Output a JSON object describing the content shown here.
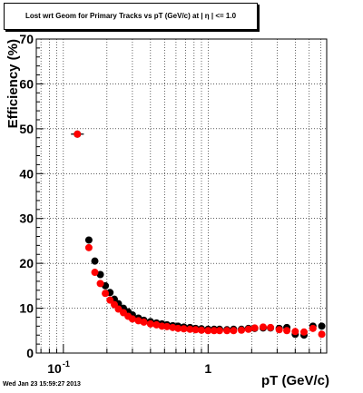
{
  "chart_data": {
    "type": "scatter",
    "title": "Lost wrt Geom for Primary Tracks vs pT (GeV/c) at | η | <= 1.0",
    "xlabel": "pT (GeV/c)",
    "ylabel": "Efficiency (%)",
    "x_scale": "log",
    "xlim": [
      0.065,
      6.6
    ],
    "ylim": [
      0,
      70
    ],
    "x_tick_labels": [
      "10",
      "-1",
      "1"
    ],
    "y_tick_labels": [
      "0",
      "10",
      "20",
      "30",
      "40",
      "50",
      "60",
      "70"
    ],
    "grid": true,
    "series": [
      {
        "color": "#000000",
        "x": [
          0.125,
          0.15,
          0.165,
          0.18,
          0.195,
          0.21,
          0.225,
          0.24,
          0.26,
          0.28,
          0.3,
          0.33,
          0.36,
          0.4,
          0.44,
          0.48,
          0.52,
          0.57,
          0.62,
          0.68,
          0.75,
          0.82,
          0.9,
          1.0,
          1.1,
          1.2,
          1.35,
          1.5,
          1.7,
          1.9,
          2.1,
          2.4,
          2.7,
          3.1,
          3.5,
          4.0,
          4.6,
          5.3,
          6.1
        ],
        "y": [
          48.8,
          25.2,
          20.5,
          17.5,
          15.0,
          13.5,
          12.0,
          11.0,
          10.0,
          9.2,
          8.5,
          7.8,
          7.3,
          7.0,
          6.7,
          6.5,
          6.3,
          6.1,
          6.0,
          5.8,
          5.7,
          5.5,
          5.4,
          5.3,
          5.3,
          5.3,
          5.2,
          5.3,
          5.3,
          5.5,
          5.5,
          5.6,
          5.6,
          5.5,
          5.7,
          4.2,
          4.0,
          6.0,
          6.0
        ]
      },
      {
        "color": "#ff0000",
        "x": [
          0.125,
          0.15,
          0.165,
          0.18,
          0.195,
          0.21,
          0.225,
          0.24,
          0.26,
          0.28,
          0.3,
          0.33,
          0.36,
          0.4,
          0.44,
          0.48,
          0.52,
          0.57,
          0.62,
          0.68,
          0.75,
          0.82,
          0.9,
          1.0,
          1.1,
          1.2,
          1.35,
          1.5,
          1.7,
          1.9,
          2.1,
          2.4,
          2.7,
          3.1,
          3.5,
          4.0,
          4.6,
          5.3,
          6.1
        ],
        "y": [
          48.8,
          23.5,
          18.0,
          15.5,
          13.3,
          11.8,
          10.8,
          9.8,
          9.0,
          8.2,
          7.6,
          7.2,
          6.9,
          6.5,
          6.3,
          6.0,
          5.9,
          5.7,
          5.5,
          5.4,
          5.3,
          5.2,
          5.1,
          5.0,
          5.0,
          5.0,
          5.0,
          5.0,
          5.1,
          5.3,
          5.6,
          5.8,
          5.7,
          5.2,
          5.0,
          4.8,
          4.7,
          5.5,
          4.2
        ]
      }
    ]
  },
  "timestamp": "Wed Jan 23 15:59:27 2013"
}
